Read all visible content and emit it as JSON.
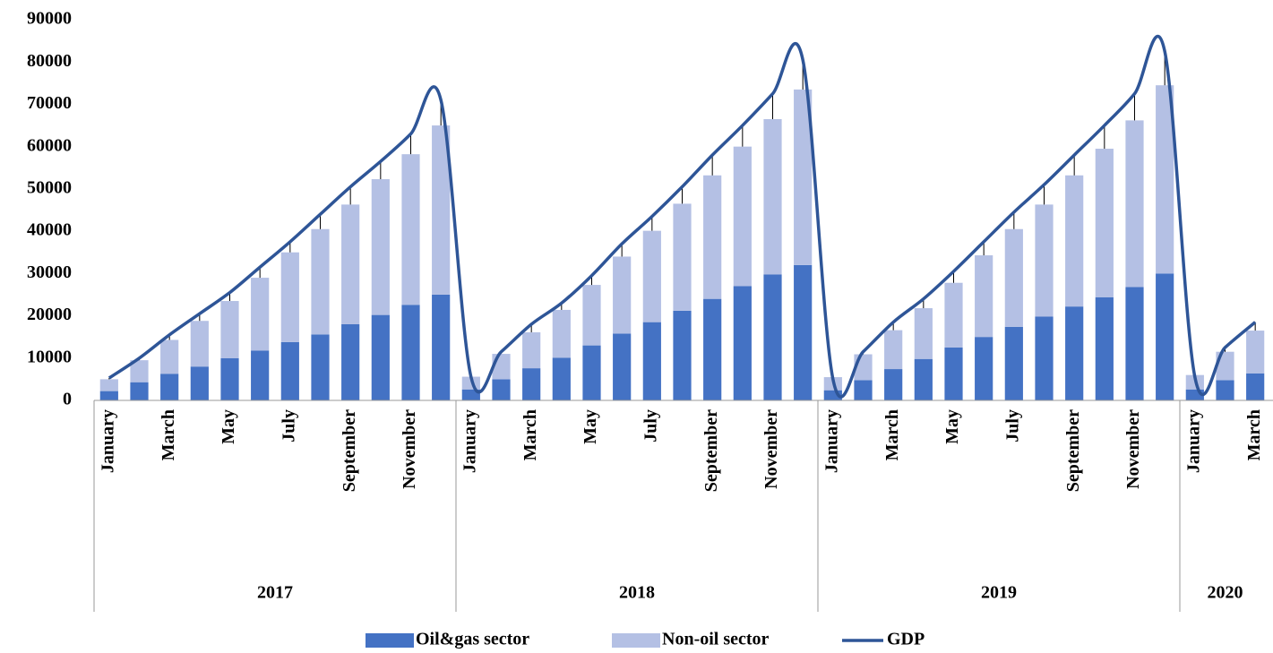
{
  "chart_data": {
    "type": "bar",
    "categories": [
      "January",
      null,
      "March",
      null,
      "May",
      null,
      "July",
      null,
      "September",
      null,
      "November",
      null,
      "January",
      null,
      "March",
      null,
      "May",
      null,
      "July",
      null,
      "September",
      null,
      "November",
      null,
      "January",
      null,
      "March",
      null,
      "May",
      null,
      "July",
      null,
      "September",
      null,
      "November",
      null,
      "January",
      null,
      "March"
    ],
    "groups": [
      "2017",
      "2018",
      "2019",
      "2020"
    ],
    "series": [
      {
        "name": "Oil&gas sector",
        "color": "#4472c4",
        "stack": true,
        "values": [
          2200,
          4300,
          6300,
          8000,
          10000,
          11800,
          13800,
          15600,
          18000,
          20200,
          22600,
          25000,
          2600,
          5000,
          7600,
          10100,
          13000,
          15800,
          18500,
          21200,
          24000,
          27000,
          29800,
          32000,
          2400,
          4800,
          7400,
          9800,
          12500,
          15000,
          17400,
          19800,
          22200,
          24400,
          26800,
          30000,
          2600,
          4800,
          6400
        ]
      },
      {
        "name": "Non-oil sector",
        "color": "#b4c0e4",
        "stack": true,
        "values": [
          2800,
          5200,
          8000,
          10800,
          13500,
          17200,
          21200,
          24900,
          28300,
          32100,
          35600,
          40000,
          3000,
          6000,
          8500,
          11300,
          14300,
          18200,
          21600,
          25300,
          29200,
          33000,
          36700,
          41500,
          3100,
          6100,
          9200,
          12000,
          15300,
          19300,
          23100,
          26500,
          31000,
          35100,
          39400,
          44500,
          3400,
          6700,
          10100
        ]
      },
      {
        "name": "GDP",
        "color": "#2e5597",
        "kind": "line",
        "values": [
          5300,
          10000,
          15500,
          20500,
          25500,
          31500,
          37500,
          44000,
          50500,
          56500,
          63000,
          71000,
          5500,
          11500,
          18000,
          23000,
          29500,
          37000,
          43500,
          50500,
          58000,
          65000,
          72500,
          80500,
          5000,
          11500,
          18500,
          24000,
          30500,
          37500,
          44500,
          51000,
          58000,
          65000,
          72500,
          82500,
          5500,
          12500,
          18500
        ]
      }
    ],
    "ylim": [
      0,
      90000
    ],
    "yticks": [
      0,
      10000,
      20000,
      30000,
      40000,
      50000,
      60000,
      70000,
      80000,
      90000
    ],
    "grid": false
  }
}
